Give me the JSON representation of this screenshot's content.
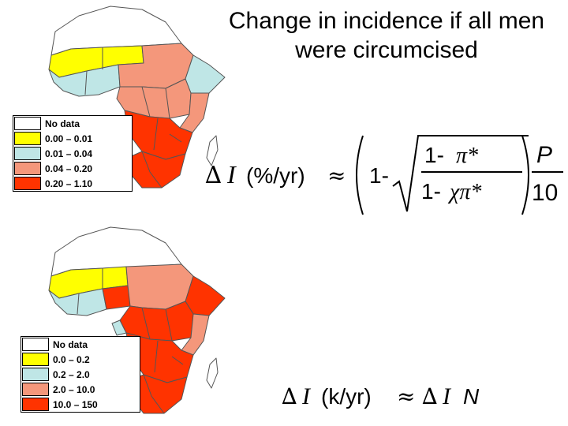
{
  "title": "Change in incidence if all men were circumcised",
  "maps": [
    {
      "legend": [
        {
          "label": "No data",
          "color": "#ffffff"
        },
        {
          "label": "0.00 – 0.01",
          "color": "#ffff00"
        },
        {
          "label": "0.01 – 0.04",
          "color": "#bfe6e6"
        },
        {
          "label": "0.04 – 0.20",
          "color": "#f4977b"
        },
        {
          "label": "0.20 – 1.10",
          "color": "#ff3300"
        }
      ]
    },
    {
      "legend": [
        {
          "label": "No data",
          "color": "#ffffff"
        },
        {
          "label": "0.0 – 0.2",
          "color": "#ffff00"
        },
        {
          "label": "0.2 – 2.0",
          "color": "#bfe6e6"
        },
        {
          "label": "2.0 – 10.0",
          "color": "#f4977b"
        },
        {
          "label": "10.0 – 150",
          "color": "#ff3300"
        }
      ]
    }
  ],
  "formula1": {
    "delta": "∆",
    "var": "I",
    "unit": "(%/yr)",
    "approx": "≈",
    "one_minus": "1-",
    "num_prefix": "1-",
    "pi_star": "π*",
    "den_prefix": "1-",
    "chi_pi_star": "χπ*",
    "frac_num": "P",
    "frac_den": "10"
  },
  "formula2": {
    "delta": "∆",
    "var": "I",
    "unit": "(k/yr)",
    "approx": "≈",
    "rhs_delta": "∆",
    "rhs_var": "I",
    "rhs_n": "N"
  }
}
